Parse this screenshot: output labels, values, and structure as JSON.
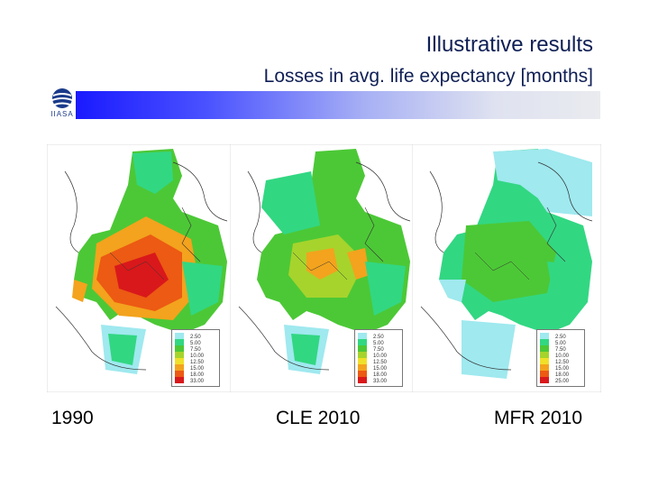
{
  "header": {
    "title": "Illustrative results",
    "subtitle": "Losses in avg. life expectancy [months]",
    "logo_text": "IIASA",
    "logo_icon": "globe-icon"
  },
  "maps": [
    {
      "caption": "1990",
      "legend": [
        "2.50",
        "5.00",
        "7.50",
        "10.00",
        "12.50",
        "15.00",
        "18.00",
        "33.00"
      ]
    },
    {
      "caption": "CLE 2010",
      "legend": [
        "2.50",
        "5.00",
        "7.50",
        "10.00",
        "12.50",
        "15.00",
        "18.00",
        "33.00"
      ]
    },
    {
      "caption": "MFR 2010",
      "legend": [
        "2.50",
        "5.00",
        "7.50",
        "10.00",
        "12.50",
        "15.00",
        "18.00",
        "25.00"
      ]
    }
  ],
  "legend_colors": [
    "#9fe9ef",
    "#32d782",
    "#4cc836",
    "#a6d42c",
    "#f0e02a",
    "#f3a31d",
    "#ec5a13",
    "#d9181b"
  ]
}
